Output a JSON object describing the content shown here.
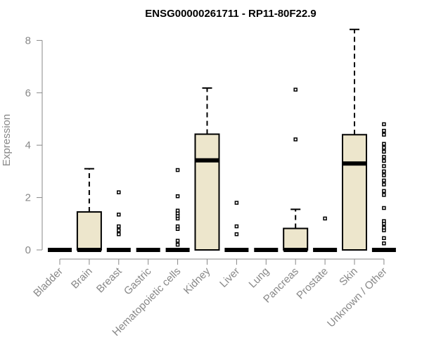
{
  "chart_data": {
    "type": "box",
    "title": "ENSG00000261711 - RP11-80F22.9",
    "xlabel": "",
    "ylabel": "Expression",
    "ylim": [
      0,
      8
    ],
    "yticks": [
      0,
      2,
      4,
      6,
      8
    ],
    "box_color": "#ede6cc",
    "categories": [
      "Bladder",
      "Brain",
      "Breast",
      "Gastric",
      "Hematopoietic cells",
      "Kidney",
      "Liver",
      "Lung",
      "Pancreas",
      "Prostate",
      "Skin",
      "Unknown / Other"
    ],
    "boxes": [
      {
        "category": "Bladder",
        "min": 0,
        "q1": 0,
        "median": 0,
        "q3": 0,
        "max": 0,
        "outliers": []
      },
      {
        "category": "Brain",
        "min": 0,
        "q1": 0,
        "median": 0,
        "q3": 1.45,
        "max": 3.1,
        "outliers": []
      },
      {
        "category": "Breast",
        "min": 0,
        "q1": 0,
        "median": 0,
        "q3": 0,
        "max": 0,
        "outliers": [
          0.6,
          0.75,
          0.9,
          1.35,
          2.2
        ]
      },
      {
        "category": "Gastric",
        "min": 0,
        "q1": 0,
        "median": 0,
        "q3": 0,
        "max": 0,
        "outliers": []
      },
      {
        "category": "Hematopoietic cells",
        "min": 0,
        "q1": 0,
        "median": 0,
        "q3": 0,
        "max": 0,
        "outliers": [
          0.2,
          0.35,
          0.8,
          0.9,
          1.2,
          1.3,
          1.4,
          1.5,
          2.05,
          3.05
        ]
      },
      {
        "category": "Kidney",
        "min": 0,
        "q1": 0,
        "median": 3.42,
        "q3": 4.42,
        "max": 6.18,
        "outliers": []
      },
      {
        "category": "Liver",
        "min": 0,
        "q1": 0,
        "median": 0,
        "q3": 0,
        "max": 0,
        "outliers": [
          0.6,
          0.9,
          1.8
        ]
      },
      {
        "category": "Lung",
        "min": 0,
        "q1": 0,
        "median": 0,
        "q3": 0,
        "max": 0,
        "outliers": []
      },
      {
        "category": "Pancreas",
        "min": 0,
        "q1": 0,
        "median": 0,
        "q3": 0.82,
        "max": 1.55,
        "outliers": [
          4.22,
          6.12
        ]
      },
      {
        "category": "Prostate",
        "min": 0,
        "q1": 0,
        "median": 0,
        "q3": 0,
        "max": 0,
        "outliers": [
          1.2
        ]
      },
      {
        "category": "Skin",
        "min": 0,
        "q1": 0,
        "median": 3.3,
        "q3": 4.4,
        "max": 8.42,
        "outliers": []
      },
      {
        "category": "Unknown / Other",
        "min": 0,
        "q1": 0,
        "median": 0,
        "q3": 0,
        "max": 0,
        "outliers": [
          0.25,
          0.45,
          0.75,
          0.85,
          1.0,
          1.1,
          1.6,
          2.1,
          2.25,
          2.5,
          2.65,
          2.85,
          3.0,
          3.2,
          3.4,
          3.55,
          3.75,
          3.9,
          4.05,
          4.4,
          4.55,
          4.8
        ]
      }
    ]
  }
}
